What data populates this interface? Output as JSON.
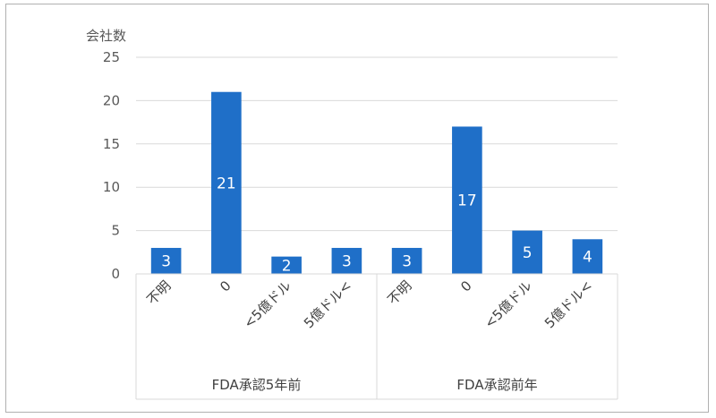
{
  "chart_data": {
    "type": "bar",
    "ylabel": "会社数",
    "ylim": [
      0,
      25
    ],
    "yticks": [
      0,
      5,
      10,
      15,
      20,
      25
    ],
    "grid": true,
    "bar_color": "#1F6FC8",
    "groups": [
      {
        "label": "FDA承認5年前",
        "categories": [
          "不明",
          "0",
          "<5億ドル",
          "5億ドル<"
        ],
        "values": [
          3,
          21,
          2,
          3
        ]
      },
      {
        "label": "FDA承認前年",
        "categories": [
          "不明",
          "0",
          "<5億ドル",
          "5億ドル<"
        ],
        "values": [
          3,
          17,
          5,
          4
        ]
      }
    ]
  }
}
